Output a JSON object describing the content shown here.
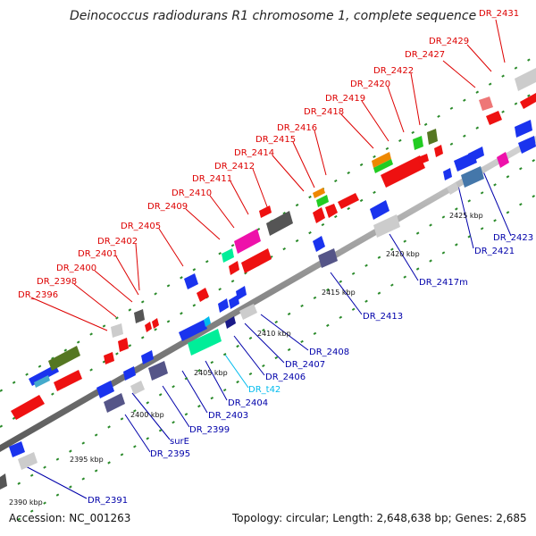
{
  "title": "Deinococcus radiodurans R1 chromosome 1, complete sequence",
  "footer": {
    "accession": "Accession: NC_001263",
    "summary": "Topology: circular; Length: 2,648,638 bp; Genes: 2,685"
  },
  "colors": {
    "top_label": "#dd0000",
    "bottom_label": "#0000aa",
    "rna_label": "#00bbee",
    "backbone": "#909090",
    "tick": "#228822"
  },
  "kbp_ticks": [
    "2390 kbp",
    "2395 kbp",
    "2400 kbp",
    "2405 kbp",
    "2410 kbp",
    "2415 kbp",
    "2420 kbp",
    "2425 kbp"
  ],
  "top_labels": [
    "DR_2396",
    "DR_2398",
    "DR_2400",
    "DR_2401",
    "DR_2402",
    "DR_2405",
    "DR_2409",
    "DR_2410",
    "DR_2411",
    "DR_2412",
    "DR_2414",
    "DR_2415",
    "DR_2416",
    "DR_2418",
    "DR_2419",
    "DR_2420",
    "DR_2422",
    "DR_2427",
    "DR_2429",
    "DR_2431"
  ],
  "bottom_labels": [
    "DR_2391",
    "DR_2395",
    "surE",
    "DR_2399",
    "DR_2403",
    "DR_2404",
    "DR_t42",
    "DR_2406",
    "DR_2407",
    "DR_2408",
    "DR_2413",
    "DR_2417m",
    "DR_2421",
    "DR_2423"
  ]
}
